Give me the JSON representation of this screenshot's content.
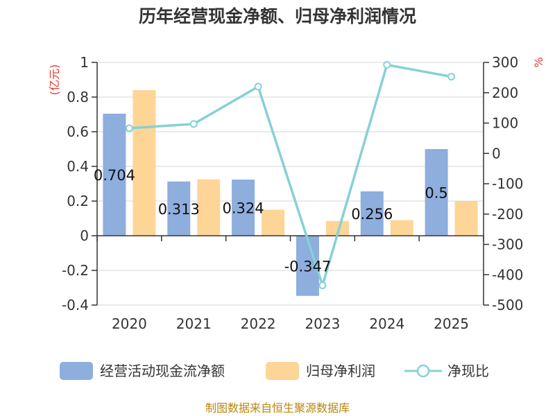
{
  "chart_data": {
    "type": "bar",
    "title": "历年经营现金净额、归母净利润情况",
    "categories": [
      "2020",
      "2021",
      "2022",
      "2023",
      "2024",
      "2025"
    ],
    "left_axis": {
      "unit": "(亿元)",
      "ylim": [
        -0.4,
        1
      ],
      "ticks": [
        "1",
        "0.8",
        "0.6",
        "0.4",
        "0.2",
        "0",
        "-0.2",
        "-0.4"
      ]
    },
    "right_axis": {
      "unit": "%",
      "ylim": [
        -500,
        300
      ],
      "ticks": [
        "300",
        "200",
        "100",
        "0",
        "-100",
        "-200",
        "-300",
        "-400",
        "-500"
      ]
    },
    "series": [
      {
        "name": "经营活动现金流净额",
        "type": "bar",
        "axis": "left",
        "color": "#8eaedd",
        "values": [
          0.704,
          0.313,
          0.324,
          -0.347,
          0.256,
          0.5
        ],
        "labels": [
          "0.704",
          "0.313",
          "0.324",
          "-0.347",
          "0.256",
          "0.5"
        ]
      },
      {
        "name": "归母净利润",
        "type": "bar",
        "axis": "left",
        "color": "#fdd596",
        "values": [
          0.84,
          0.325,
          0.15,
          0.085,
          0.09,
          0.2
        ]
      },
      {
        "name": "净现比",
        "type": "line",
        "axis": "right",
        "color": "#85d1d6",
        "values": [
          83,
          97,
          220,
          -435,
          292,
          253
        ]
      }
    ],
    "grid": true,
    "legend": "bottom"
  },
  "source": "制图数据来自恒生聚源数据库"
}
